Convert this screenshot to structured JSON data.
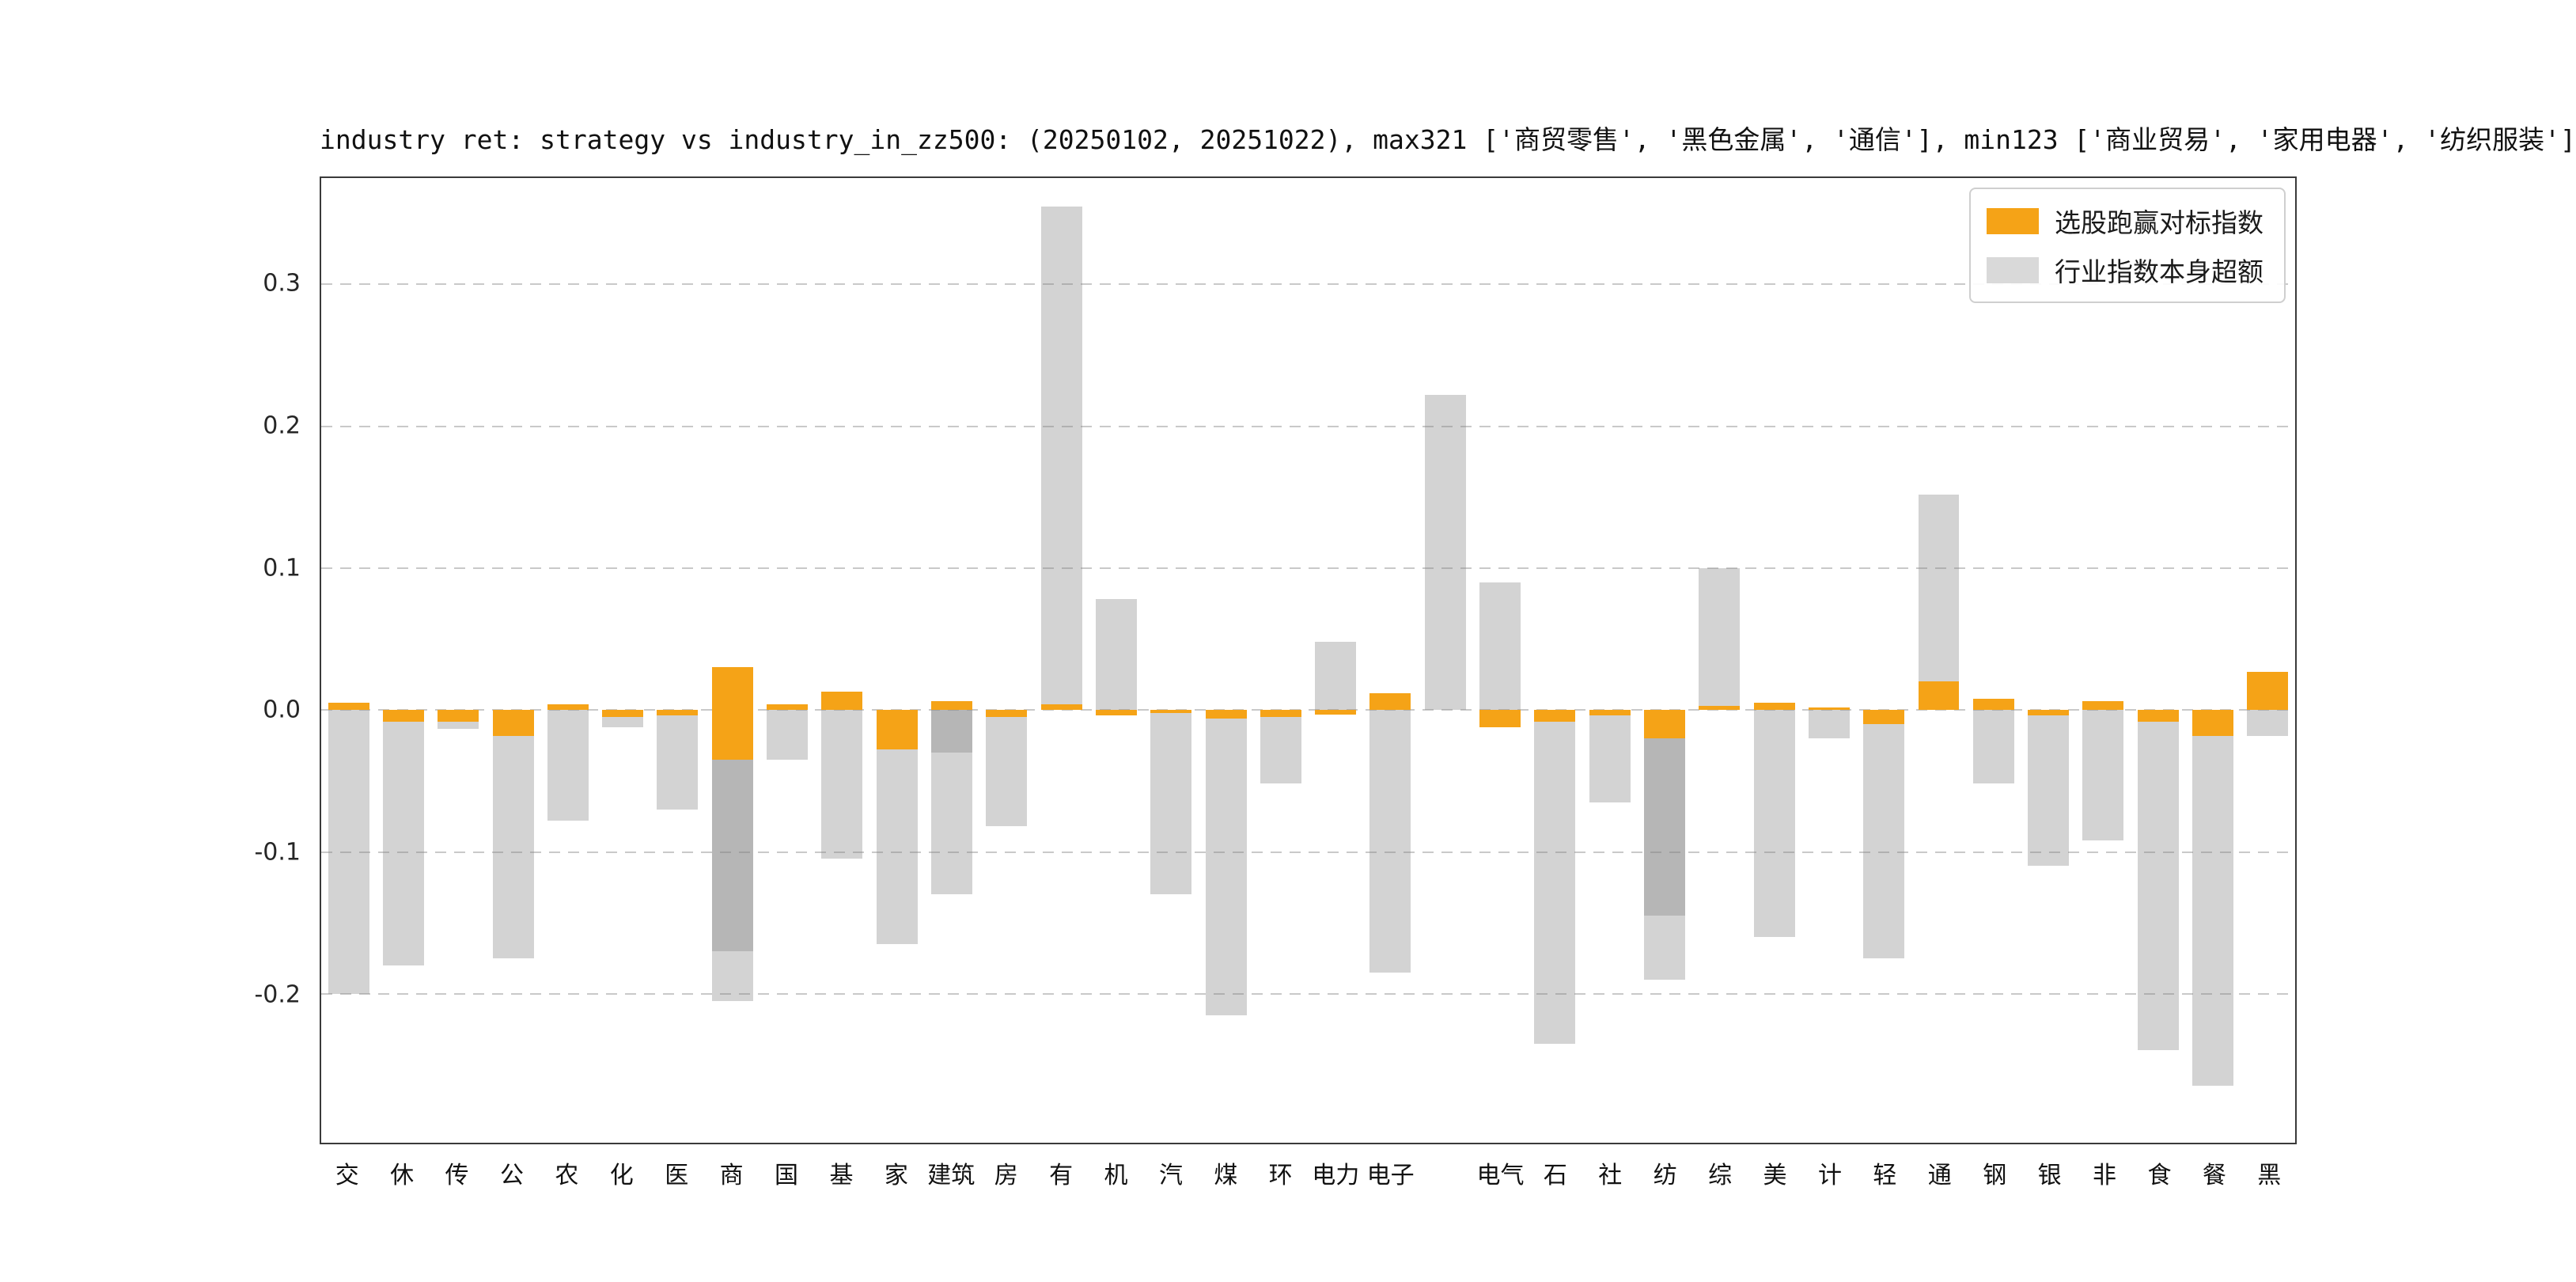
{
  "chart": {
    "title": "industry ret: strategy vs industry_in_zz500: (20250102, 20251022), max321 ['商贸零售', '黑色金属', '通信'], min123 ['商业贸易', '家用电器', '纺织服装']",
    "legend": [
      {
        "name": "选股跑赢对标指数",
        "color": "#f5a317"
      },
      {
        "name": "行业指数本身超额",
        "color": "#d9d9d9"
      }
    ]
  },
  "chart_data": {
    "type": "bar",
    "title": "industry ret: strategy vs industry_in_zz500: (20250102, 20251022), max321 ['商贸零售', '黑色金属', '通信'], min123 ['商业贸易', '家用电器', '纺织服装']",
    "date_range": "(20250102, 20251022)",
    "max3": [
      "商贸零售",
      "黑色金属",
      "通信"
    ],
    "min3": [
      "商业贸易",
      "家用电器",
      "纺织服装"
    ],
    "legend_position": "upper-right",
    "grid": "dashed-horizontal",
    "ylim": [
      -0.305,
      0.375
    ],
    "ytick_labels": [
      "0.3",
      "0.2",
      "0.1",
      "0.0",
      "-0.1",
      "-0.2"
    ],
    "ytick_values": [
      0.3,
      0.2,
      0.1,
      0.0,
      -0.1,
      -0.2
    ],
    "series_colors": {
      "orange": "#f5a317",
      "gray": "rgba(128,128,128,0.35)"
    },
    "series_names": {
      "orange": "选股跑赢对标指数",
      "gray": "行业指数本身超额"
    },
    "bars": [
      {
        "label": "交",
        "orange": 0.005,
        "gray": -0.2
      },
      {
        "label": "休",
        "orange": -0.008,
        "gray": -0.18
      },
      {
        "label": "传",
        "orange": -0.008,
        "gray": -0.013
      },
      {
        "label": "公",
        "orange": -0.018,
        "gray": -0.175
      },
      {
        "label": "农",
        "orange": 0.004,
        "gray": -0.078
      },
      {
        "label": "化",
        "orange": -0.005,
        "gray": -0.012
      },
      {
        "label": "医",
        "orange": -0.004,
        "gray": -0.07
      },
      {
        "label": "商",
        "orange": 0.03,
        "gray": -0.205,
        "gray2": -0.17,
        "orange2": -0.035
      },
      {
        "label": "国",
        "orange": 0.004,
        "gray": -0.035
      },
      {
        "label": "基",
        "orange": 0.013,
        "gray": -0.105
      },
      {
        "label": "家",
        "orange": -0.028,
        "gray": -0.165
      },
      {
        "label": "建筑",
        "orange": 0.006,
        "gray": -0.13,
        "gray2": -0.03
      },
      {
        "label": "房",
        "orange": -0.005,
        "gray": -0.082
      },
      {
        "label": "有",
        "orange": 0.004,
        "gray": 0.355
      },
      {
        "label": "机",
        "orange": -0.004,
        "gray": 0.078
      },
      {
        "label": "汽",
        "orange": -0.002,
        "gray": -0.13
      },
      {
        "label": "煤",
        "orange": -0.006,
        "gray": -0.215
      },
      {
        "label": "环",
        "orange": -0.005,
        "gray": -0.052
      },
      {
        "label": "电力",
        "orange": -0.003,
        "gray": 0.048
      },
      {
        "label": "电子",
        "orange": 0.012,
        "gray": -0.185
      },
      {
        "label": "",
        "orange": 0.0,
        "gray": 0.222
      },
      {
        "label": "电气",
        "orange": -0.012,
        "gray": 0.09
      },
      {
        "label": "石",
        "orange": -0.008,
        "gray": -0.235
      },
      {
        "label": "社",
        "orange": -0.004,
        "gray": -0.065
      },
      {
        "label": "纺",
        "orange": -0.02,
        "gray": -0.19,
        "gray2": -0.145
      },
      {
        "label": "综",
        "orange": 0.003,
        "gray": 0.1
      },
      {
        "label": "美",
        "orange": 0.005,
        "gray": -0.16
      },
      {
        "label": "计",
        "orange": 0.002,
        "gray": -0.02
      },
      {
        "label": "轻",
        "orange": -0.01,
        "gray": -0.175
      },
      {
        "label": "通",
        "orange": 0.02,
        "gray": 0.152
      },
      {
        "label": "钢",
        "orange": 0.008,
        "gray": -0.052
      },
      {
        "label": "银",
        "orange": -0.004,
        "gray": -0.11
      },
      {
        "label": "非",
        "orange": 0.006,
        "gray": -0.092
      },
      {
        "label": "食",
        "orange": -0.008,
        "gray": -0.24
      },
      {
        "label": "餐",
        "orange": -0.018,
        "gray": -0.265
      },
      {
        "label": "黑",
        "orange": 0.027,
        "gray": -0.018
      }
    ]
  }
}
